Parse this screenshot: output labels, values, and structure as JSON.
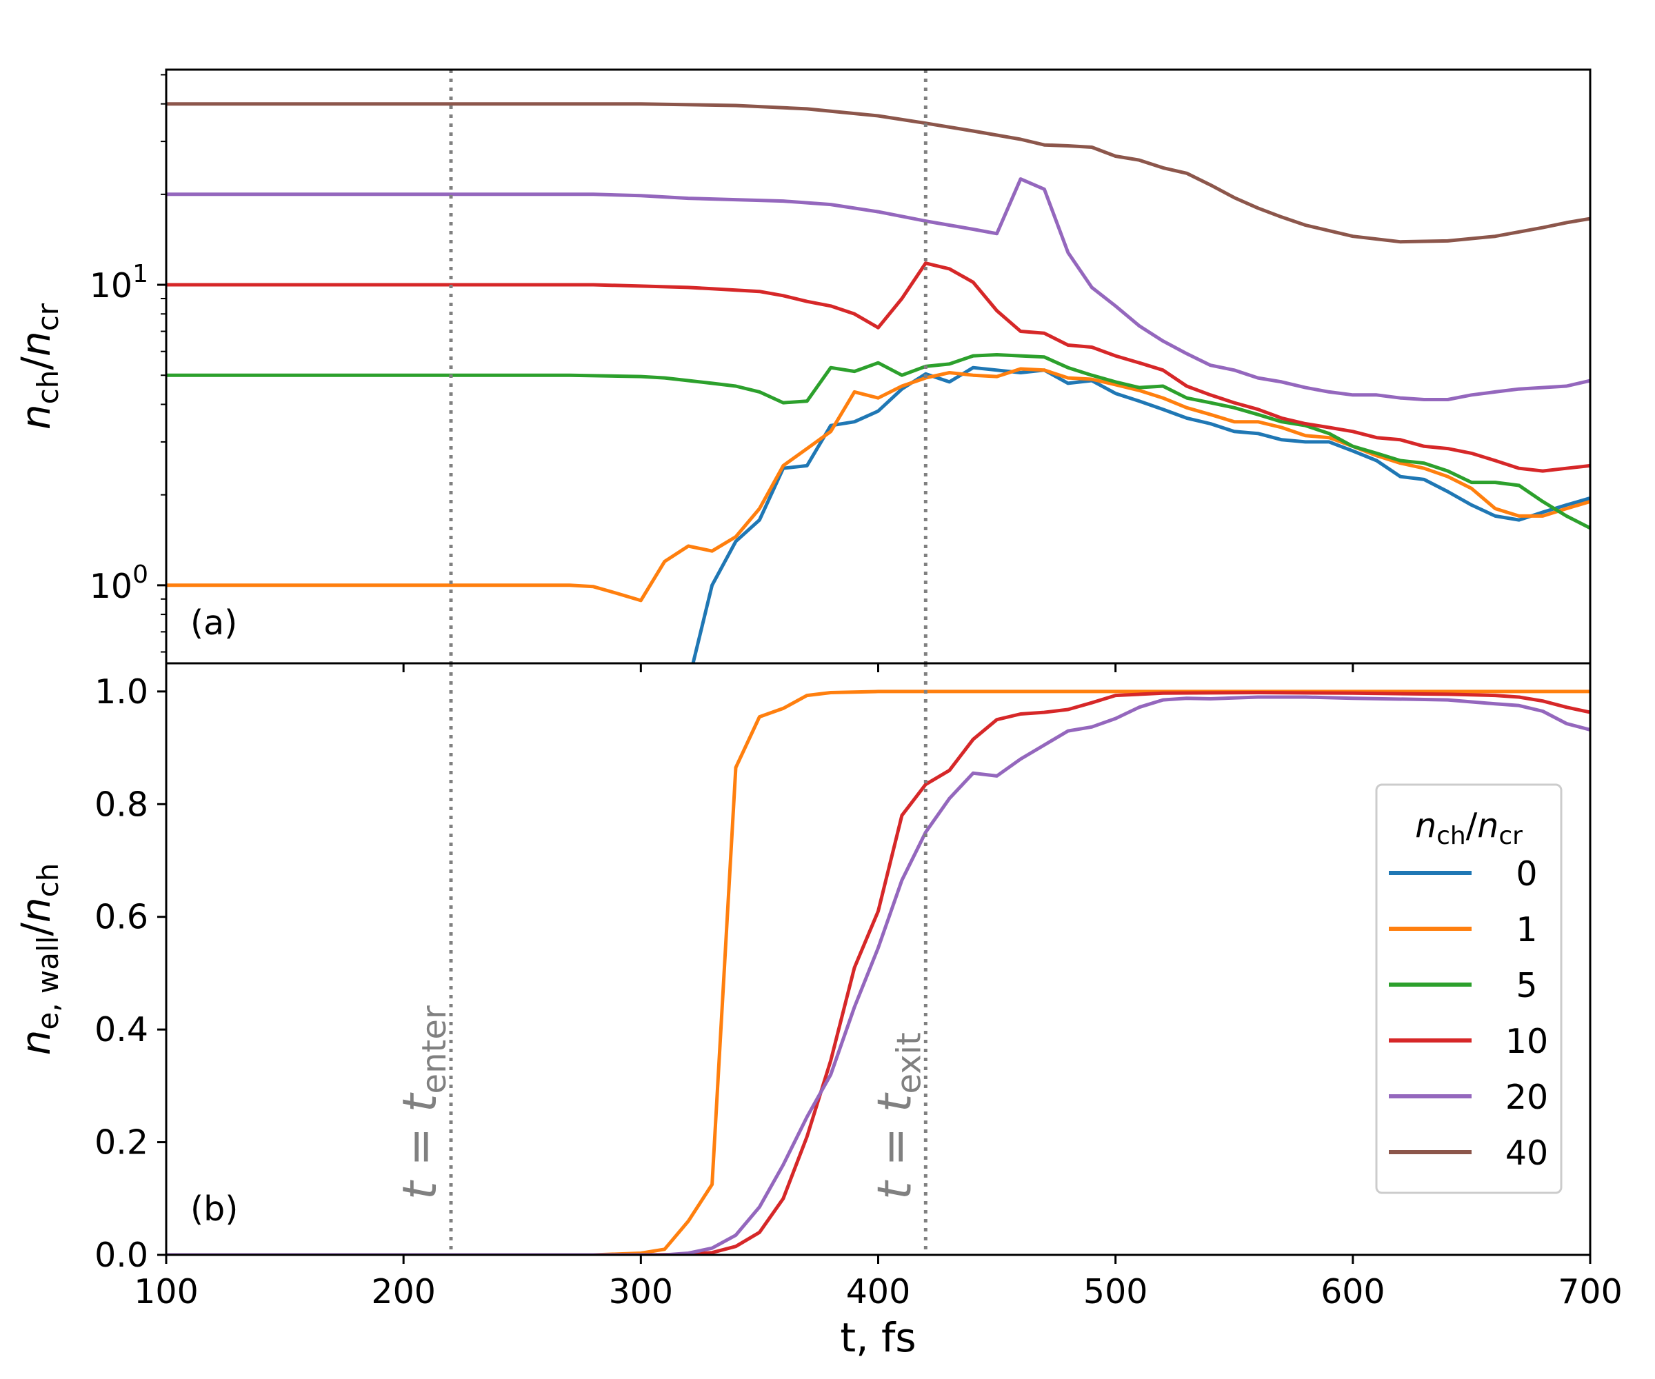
{
  "chart_data": [
    {
      "panel": "(a)",
      "type": "line",
      "yscale": "log",
      "xlim": [
        100,
        700
      ],
      "ylim": [
        0.55,
        52
      ],
      "xlabel": "",
      "ylabel_base": "n",
      "ylabel_sub": "ch",
      "ylabel_sep": "/",
      "ylabel_base2": "n",
      "ylabel_sub2": "cr",
      "yticks": [
        {
          "value": 1,
          "base": "10",
          "exp": "0"
        },
        {
          "value": 10,
          "base": "10",
          "exp": "1"
        }
      ],
      "xticks": [
        100,
        200,
        300,
        400,
        500,
        600,
        700
      ],
      "series": [
        {
          "name": "0",
          "color": "#1f77b4",
          "x": [
            322,
            330,
            340,
            350,
            360,
            370,
            380,
            390,
            400,
            410,
            420,
            430,
            440,
            450,
            460,
            470,
            480,
            490,
            500,
            510,
            520,
            530,
            540,
            550,
            560,
            570,
            580,
            590,
            600,
            610,
            620,
            630,
            640,
            650,
            660,
            670,
            680,
            690,
            700
          ],
          "values": [
            0.55,
            1.0,
            1.4,
            1.65,
            2.45,
            2.5,
            3.4,
            3.5,
            3.8,
            4.5,
            5.05,
            4.75,
            5.3,
            5.2,
            5.1,
            5.2,
            4.7,
            4.8,
            4.35,
            4.1,
            3.85,
            3.6,
            3.45,
            3.25,
            3.2,
            3.05,
            3.0,
            3.0,
            2.8,
            2.6,
            2.3,
            2.25,
            2.05,
            1.85,
            1.7,
            1.65,
            1.75,
            1.85,
            1.95
          ]
        },
        {
          "name": "1",
          "color": "#ff7f0e",
          "x": [
            100,
            150,
            200,
            250,
            270,
            280,
            290,
            300,
            310,
            320,
            330,
            340,
            350,
            360,
            370,
            380,
            390,
            400,
            410,
            420,
            430,
            440,
            450,
            460,
            470,
            480,
            490,
            500,
            510,
            520,
            530,
            540,
            550,
            560,
            570,
            580,
            590,
            600,
            610,
            620,
            630,
            640,
            650,
            660,
            670,
            680,
            690,
            700
          ],
          "values": [
            1.0,
            1.0,
            1.0,
            1.0,
            1.0,
            0.99,
            0.94,
            0.89,
            1.2,
            1.35,
            1.3,
            1.45,
            1.8,
            2.5,
            2.85,
            3.25,
            4.4,
            4.2,
            4.6,
            4.9,
            5.1,
            5.0,
            4.95,
            5.25,
            5.2,
            4.9,
            4.85,
            4.65,
            4.45,
            4.2,
            3.9,
            3.7,
            3.5,
            3.5,
            3.35,
            3.15,
            3.1,
            2.9,
            2.7,
            2.55,
            2.45,
            2.3,
            2.1,
            1.8,
            1.7,
            1.7,
            1.8,
            1.9
          ]
        },
        {
          "name": "5",
          "color": "#2ca02c",
          "x": [
            100,
            200,
            270,
            300,
            310,
            320,
            330,
            340,
            350,
            360,
            370,
            380,
            390,
            400,
            410,
            420,
            430,
            440,
            450,
            460,
            470,
            480,
            490,
            500,
            510,
            520,
            530,
            540,
            550,
            560,
            570,
            580,
            590,
            600,
            610,
            620,
            630,
            640,
            650,
            660,
            670,
            680,
            690,
            700
          ],
          "values": [
            5.0,
            5.0,
            5.0,
            4.95,
            4.9,
            4.8,
            4.7,
            4.6,
            4.4,
            4.05,
            4.1,
            5.3,
            5.15,
            5.5,
            5.0,
            5.35,
            5.45,
            5.8,
            5.85,
            5.8,
            5.75,
            5.3,
            5.0,
            4.75,
            4.55,
            4.6,
            4.2,
            4.05,
            3.9,
            3.7,
            3.5,
            3.4,
            3.2,
            2.9,
            2.75,
            2.6,
            2.55,
            2.4,
            2.2,
            2.2,
            2.15,
            1.9,
            1.7,
            1.55
          ]
        },
        {
          "name": "10",
          "color": "#d62728",
          "x": [
            100,
            200,
            280,
            300,
            320,
            330,
            340,
            350,
            360,
            370,
            380,
            390,
            400,
            410,
            420,
            430,
            440,
            450,
            460,
            470,
            480,
            490,
            500,
            510,
            520,
            530,
            540,
            550,
            560,
            570,
            580,
            590,
            600,
            610,
            620,
            630,
            640,
            650,
            660,
            670,
            680,
            690,
            700
          ],
          "values": [
            10.0,
            10.0,
            10.0,
            9.9,
            9.8,
            9.7,
            9.6,
            9.5,
            9.2,
            8.8,
            8.5,
            8.0,
            7.2,
            9.0,
            11.8,
            11.3,
            10.2,
            8.2,
            7.0,
            6.9,
            6.3,
            6.2,
            5.8,
            5.5,
            5.2,
            4.6,
            4.3,
            4.05,
            3.85,
            3.6,
            3.45,
            3.35,
            3.25,
            3.1,
            3.05,
            2.9,
            2.85,
            2.75,
            2.6,
            2.45,
            2.4,
            2.45,
            2.5
          ]
        },
        {
          "name": "20",
          "color": "#9467bd",
          "x": [
            100,
            200,
            280,
            300,
            320,
            340,
            360,
            380,
            400,
            420,
            440,
            450,
            460,
            470,
            480,
            490,
            500,
            510,
            520,
            530,
            540,
            550,
            560,
            570,
            580,
            590,
            600,
            610,
            620,
            630,
            640,
            650,
            660,
            670,
            680,
            690,
            700
          ],
          "values": [
            20.0,
            20.0,
            20.0,
            19.8,
            19.4,
            19.2,
            19.0,
            18.5,
            17.5,
            16.3,
            15.3,
            14.8,
            22.5,
            20.8,
            12.8,
            9.8,
            8.5,
            7.3,
            6.5,
            5.9,
            5.4,
            5.2,
            4.9,
            4.75,
            4.55,
            4.4,
            4.3,
            4.3,
            4.2,
            4.15,
            4.15,
            4.3,
            4.4,
            4.5,
            4.55,
            4.6,
            4.8
          ]
        },
        {
          "name": "40",
          "color": "#8c564b",
          "x": [
            100,
            200,
            300,
            340,
            370,
            400,
            420,
            440,
            460,
            470,
            480,
            490,
            500,
            510,
            520,
            530,
            540,
            550,
            560,
            570,
            580,
            600,
            620,
            640,
            660,
            680,
            690,
            700
          ],
          "values": [
            40.0,
            40.0,
            40.0,
            39.5,
            38.5,
            36.5,
            34.5,
            32.5,
            30.5,
            29.2,
            29.0,
            28.7,
            26.8,
            26.0,
            24.5,
            23.5,
            21.5,
            19.5,
            18.0,
            16.8,
            15.8,
            14.5,
            13.9,
            14.0,
            14.5,
            15.5,
            16.1,
            16.6
          ]
        }
      ]
    },
    {
      "panel": "(b)",
      "type": "line",
      "yscale": "linear",
      "xlim": [
        100,
        700
      ],
      "ylim": [
        0.0,
        1.05
      ],
      "xlabel": "t, fs",
      "ylabel_base": "n",
      "ylabel_sub": "e, wall",
      "ylabel_sep": "/",
      "ylabel_base2": "n",
      "ylabel_sub2": "ch",
      "yticks": [
        {
          "value": 0.0,
          "label": "0.0"
        },
        {
          "value": 0.2,
          "label": "0.2"
        },
        {
          "value": 0.4,
          "label": "0.4"
        },
        {
          "value": 0.6,
          "label": "0.6"
        },
        {
          "value": 0.8,
          "label": "0.8"
        },
        {
          "value": 1.0,
          "label": "1.0"
        }
      ],
      "xticks": [
        100,
        200,
        300,
        400,
        500,
        600,
        700
      ],
      "series": [
        {
          "name": "1",
          "color": "#ff7f0e",
          "x": [
            100,
            280,
            300,
            310,
            320,
            330,
            340,
            350,
            360,
            370,
            380,
            400,
            500,
            600,
            700
          ],
          "values": [
            0.0,
            0.0,
            0.003,
            0.01,
            0.06,
            0.125,
            0.865,
            0.955,
            0.97,
            0.993,
            0.998,
            1.0,
            1.0,
            1.0,
            1.0
          ]
        },
        {
          "name": "10",
          "color": "#d62728",
          "x": [
            100,
            300,
            320,
            330,
            340,
            350,
            360,
            370,
            380,
            390,
            400,
            410,
            420,
            430,
            440,
            450,
            460,
            470,
            480,
            490,
            500,
            520,
            560,
            600,
            640,
            660,
            670,
            680,
            690,
            700
          ],
          "values": [
            0.0,
            0.0,
            0.001,
            0.004,
            0.015,
            0.04,
            0.1,
            0.21,
            0.345,
            0.51,
            0.61,
            0.78,
            0.835,
            0.86,
            0.915,
            0.95,
            0.96,
            0.963,
            0.968,
            0.98,
            0.993,
            0.997,
            0.998,
            0.997,
            0.995,
            0.993,
            0.99,
            0.983,
            0.972,
            0.963
          ]
        },
        {
          "name": "20",
          "color": "#9467bd",
          "x": [
            100,
            310,
            320,
            330,
            340,
            350,
            360,
            370,
            380,
            390,
            400,
            410,
            420,
            430,
            440,
            450,
            460,
            470,
            480,
            490,
            500,
            510,
            520,
            530,
            540,
            560,
            580,
            600,
            640,
            660,
            670,
            680,
            690,
            700
          ],
          "values": [
            0.0,
            0.0,
            0.003,
            0.012,
            0.035,
            0.085,
            0.16,
            0.245,
            0.32,
            0.44,
            0.545,
            0.665,
            0.75,
            0.81,
            0.855,
            0.85,
            0.88,
            0.905,
            0.93,
            0.937,
            0.952,
            0.972,
            0.985,
            0.988,
            0.987,
            0.99,
            0.99,
            0.988,
            0.985,
            0.978,
            0.975,
            0.965,
            0.943,
            0.932
          ]
        }
      ]
    }
  ],
  "annotations": {
    "vline_enter": {
      "t": 220,
      "prefix": "t = ",
      "base": "t",
      "sub": "enter"
    },
    "vline_exit": {
      "t": 420,
      "prefix": "t = ",
      "base": "t",
      "sub": "exit"
    },
    "vline_color": "#808080"
  },
  "legend": {
    "title_base": "n",
    "title_sub": "ch",
    "title_sep": "/",
    "title_base2": "n",
    "title_sub2": "cr",
    "entries": [
      {
        "label": "0",
        "color": "#1f77b4"
      },
      {
        "label": "1",
        "color": "#ff7f0e"
      },
      {
        "label": "5",
        "color": "#2ca02c"
      },
      {
        "label": "10",
        "color": "#d62728"
      },
      {
        "label": "20",
        "color": "#9467bd"
      },
      {
        "label": "40",
        "color": "#8c564b"
      }
    ]
  }
}
